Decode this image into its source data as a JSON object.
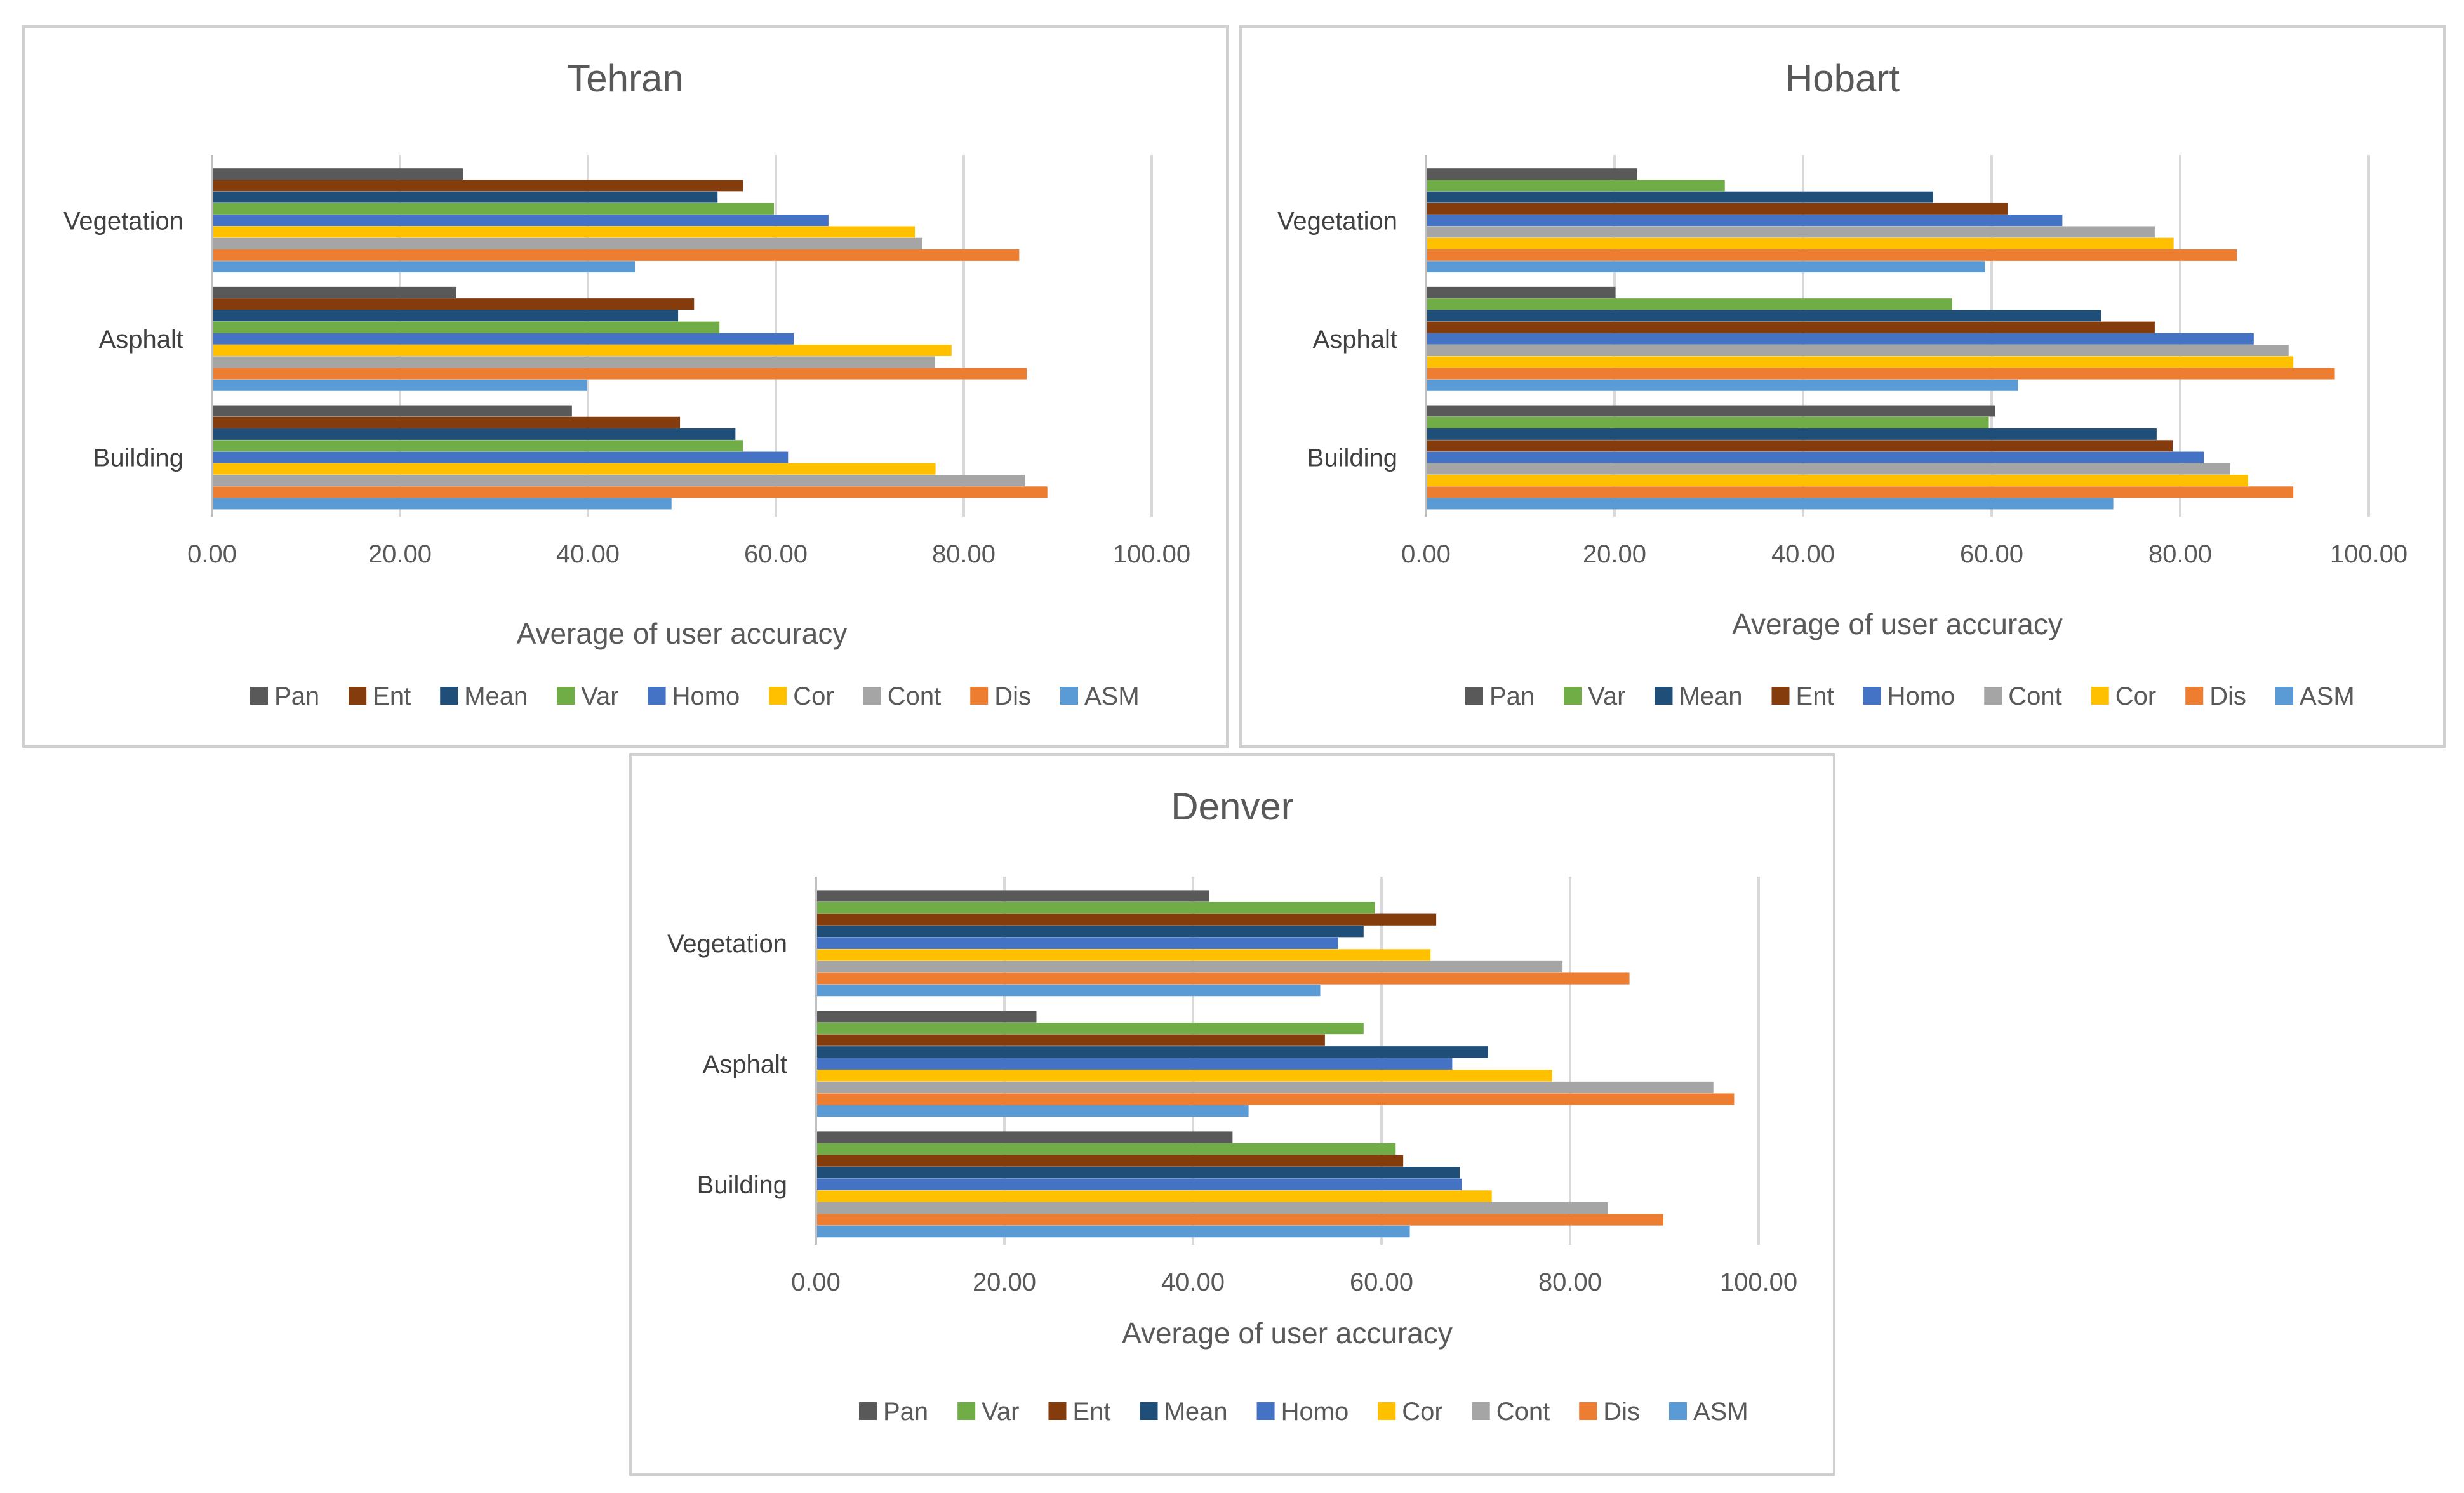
{
  "colors": {
    "Pan": "#595959",
    "Ent": "#843c0c",
    "Mean": "#1f4e79",
    "Var": "#70ad47",
    "Homo": "#4472c4",
    "Cor": "#ffc000",
    "Cont": "#a5a5a5",
    "Dis": "#ed7d31",
    "ASM": "#5b9bd5"
  },
  "chart_data": [
    {
      "type": "bar",
      "orientation": "horizontal",
      "title": "Tehran",
      "xlabel": "Average of user accuracy",
      "ylabel": "",
      "xlim": [
        0,
        100
      ],
      "ticks": [
        "0.00",
        "20.00",
        "40.00",
        "60.00",
        "80.00",
        "100.00"
      ],
      "categories": [
        "Vegetation",
        "Asphalt",
        "Building"
      ],
      "legend": [
        "Pan",
        "Ent",
        "Mean",
        "Var",
        "Homo",
        "Cor",
        "Cont",
        "Dis",
        "ASM"
      ],
      "series": [
        {
          "name": "Pan",
          "values": [
            26.7,
            26.0,
            38.3
          ]
        },
        {
          "name": "Ent",
          "values": [
            56.5,
            51.3,
            49.8
          ]
        },
        {
          "name": "Mean",
          "values": [
            53.8,
            49.6,
            55.7
          ]
        },
        {
          "name": "Var",
          "values": [
            59.8,
            54.0,
            56.5
          ]
        },
        {
          "name": "Homo",
          "values": [
            65.6,
            61.9,
            61.3
          ]
        },
        {
          "name": "Cor",
          "values": [
            74.8,
            78.7,
            77.0
          ]
        },
        {
          "name": "Cont",
          "values": [
            75.6,
            76.9,
            86.5
          ]
        },
        {
          "name": "Dis",
          "values": [
            85.9,
            86.7,
            88.9
          ]
        },
        {
          "name": "ASM",
          "values": [
            45.0,
            39.9,
            48.9
          ]
        }
      ]
    },
    {
      "type": "bar",
      "orientation": "horizontal",
      "title": "Hobart",
      "xlabel": "Average of user accuracy",
      "ylabel": "",
      "xlim": [
        0,
        100
      ],
      "ticks": [
        "0.00",
        "20.00",
        "40.00",
        "60.00",
        "80.00",
        "100.00"
      ],
      "categories": [
        "Vegetation",
        "Asphalt",
        "Building"
      ],
      "legend": [
        "Pan",
        "Var",
        "Mean",
        "Ent",
        "Homo",
        "Cont",
        "Cor",
        "Dis",
        "ASM"
      ],
      "series": [
        {
          "name": "Pan",
          "values": [
            22.4,
            20.1,
            60.4
          ]
        },
        {
          "name": "Var",
          "values": [
            31.7,
            55.8,
            59.7
          ]
        },
        {
          "name": "Mean",
          "values": [
            53.8,
            71.6,
            77.5
          ]
        },
        {
          "name": "Ent",
          "values": [
            61.7,
            77.3,
            79.2
          ]
        },
        {
          "name": "Homo",
          "values": [
            67.5,
            87.8,
            82.5
          ]
        },
        {
          "name": "Cont",
          "values": [
            77.3,
            91.5,
            85.3
          ]
        },
        {
          "name": "Cor",
          "values": [
            79.3,
            92.0,
            87.2
          ]
        },
        {
          "name": "Dis",
          "values": [
            86.0,
            96.4,
            92.0
          ]
        },
        {
          "name": "ASM",
          "values": [
            59.3,
            62.8,
            72.9
          ]
        }
      ]
    },
    {
      "type": "bar",
      "orientation": "horizontal",
      "title": "Denver",
      "xlabel": "Average of user accuracy",
      "ylabel": "",
      "xlim": [
        0,
        100
      ],
      "ticks": [
        "0.00",
        "20.00",
        "40.00",
        "60.00",
        "80.00",
        "100.00"
      ],
      "categories": [
        "Vegetation",
        "Asphalt",
        "Building"
      ],
      "legend": [
        "Pan",
        "Var",
        "Ent",
        "Mean",
        "Homo",
        "Cor",
        "Cont",
        "Dis",
        "ASM"
      ],
      "series": [
        {
          "name": "Pan",
          "values": [
            41.7,
            23.4,
            44.2
          ]
        },
        {
          "name": "Var",
          "values": [
            59.3,
            58.1,
            61.5
          ]
        },
        {
          "name": "Ent",
          "values": [
            65.8,
            54.0,
            62.3
          ]
        },
        {
          "name": "Mean",
          "values": [
            58.1,
            71.3,
            68.3
          ]
        },
        {
          "name": "Homo",
          "values": [
            55.4,
            67.5,
            68.5
          ]
        },
        {
          "name": "Cor",
          "values": [
            65.2,
            78.1,
            71.7
          ]
        },
        {
          "name": "Cont",
          "values": [
            79.2,
            95.2,
            84.0
          ]
        },
        {
          "name": "Dis",
          "values": [
            86.3,
            97.4,
            89.9
          ]
        },
        {
          "name": "ASM",
          "values": [
            53.5,
            45.9,
            63.0
          ]
        }
      ]
    }
  ]
}
